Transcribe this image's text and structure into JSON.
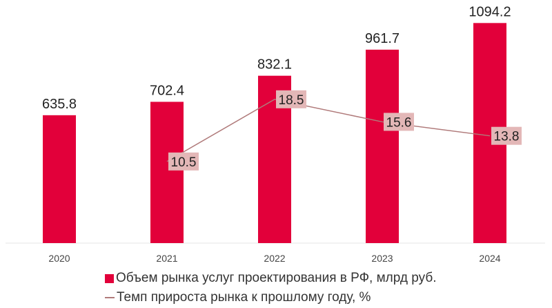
{
  "chart_data": {
    "type": "bar+line",
    "categories": [
      "2020",
      "2021",
      "2022",
      "2023",
      "2024"
    ],
    "series": [
      {
        "name": "Объем рынка услуг проектирования в РФ, млрд руб.",
        "type": "bar",
        "axis": "primary",
        "values": [
          635.8,
          702.4,
          832.1,
          961.7,
          1094.2
        ],
        "color": "#e2003a"
      },
      {
        "name": "Темп прироста рынка к прошлому году, %",
        "type": "line",
        "axis": "secondary",
        "values": [
          null,
          10.5,
          18.5,
          15.6,
          13.8
        ],
        "color": "#b07a7a",
        "label_bg": "#e3b7b7"
      }
    ],
    "ylim": [
      0,
      1140
    ],
    "y2lim": [
      0,
      29.5
    ],
    "grid": false,
    "legend": "bottom"
  }
}
